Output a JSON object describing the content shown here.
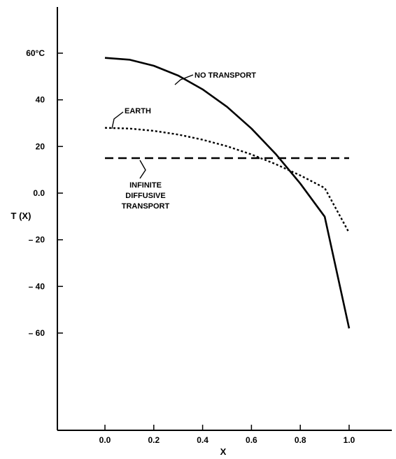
{
  "chart_data": {
    "type": "line",
    "title": "",
    "xlabel": "X",
    "ylabel": "T (X)",
    "xlim": [
      -0.2,
      1.2
    ],
    "ylim": [
      -100,
      80
    ],
    "grid": false,
    "legend": "none",
    "x_ticks": [
      {
        "value": 0.0,
        "label": "0.0"
      },
      {
        "value": 0.2,
        "label": "0.2"
      },
      {
        "value": 0.4,
        "label": "0.4"
      },
      {
        "value": 0.6,
        "label": "0.6"
      },
      {
        "value": 0.8,
        "label": "0.8"
      },
      {
        "value": 1.0,
        "label": "1.0"
      }
    ],
    "y_ticks": [
      {
        "value": 60,
        "label": "60°C"
      },
      {
        "value": 40,
        "label": "40"
      },
      {
        "value": 20,
        "label": "20"
      },
      {
        "value": 0,
        "label": "0.0"
      },
      {
        "value": -20,
        "label": "– 20"
      },
      {
        "value": -40,
        "label": "– 40"
      },
      {
        "value": -60,
        "label": "– 60"
      }
    ],
    "series": [
      {
        "name": "NO TRANSPORT",
        "style": "solid",
        "x": [
          0.0,
          0.1,
          0.2,
          0.3,
          0.4,
          0.5,
          0.6,
          0.7,
          0.8,
          0.9,
          1.0
        ],
        "y": [
          58,
          57.2,
          54.6,
          50.4,
          44.5,
          37,
          27.7,
          16.7,
          4.1,
          -10.1,
          -58
        ]
      },
      {
        "name": "EARTH",
        "style": "dotted",
        "x": [
          0.0,
          0.1,
          0.2,
          0.3,
          0.4,
          0.5,
          0.6,
          0.7,
          0.8,
          0.9,
          1.0
        ],
        "y": [
          28,
          27.7,
          26.7,
          25.1,
          22.9,
          20.1,
          16.6,
          12.4,
          7.6,
          2.2,
          -17
        ]
      },
      {
        "name": "INFINITE DIFFUSIVE TRANSPORT",
        "style": "dashed",
        "x": [
          0.0,
          1.0
        ],
        "y": [
          15,
          15
        ]
      }
    ],
    "annotations": [
      {
        "label": "NO TRANSPORT",
        "lines": [
          "NO TRANSPORT"
        ]
      },
      {
        "label": "EARTH",
        "lines": [
          "EARTH"
        ]
      },
      {
        "label": "INFINITE DIFFUSIVE TRANSPORT",
        "lines": [
          "INFINITE",
          "DIFFUSIVE",
          "TRANSPORT"
        ]
      }
    ]
  }
}
